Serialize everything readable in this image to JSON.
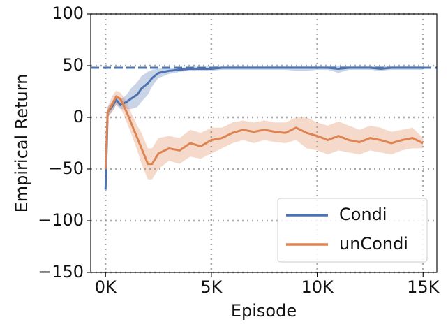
{
  "chart_data": {
    "type": "line",
    "xlabel": "Episode",
    "ylabel": "Empirical Return",
    "x": [
      0,
      100,
      300,
      500,
      700,
      1000,
      1200,
      1500,
      1700,
      2000,
      2200,
      2500,
      3000,
      3500,
      4000,
      4500,
      5000,
      5500,
      6000,
      6500,
      7000,
      7500,
      8000,
      8500,
      9000,
      9500,
      10000,
      10500,
      11000,
      11500,
      12000,
      12500,
      13000,
      13500,
      14000,
      14500,
      15000
    ],
    "series": [
      {
        "name": "Condi",
        "color": "#4c72b0",
        "values": [
          -70,
          5,
          10,
          17,
          12,
          15,
          18,
          22,
          28,
          33,
          38,
          43,
          45,
          46,
          47,
          47,
          47,
          48,
          48,
          48,
          48,
          48,
          48,
          48,
          48,
          48,
          48,
          48,
          47,
          48,
          48,
          48,
          47,
          48,
          48,
          48,
          48
        ],
        "lower": [
          -75,
          0,
          5,
          12,
          8,
          8,
          8,
          10,
          15,
          22,
          30,
          38,
          42,
          44,
          45,
          45,
          45,
          46,
          46,
          46,
          46,
          46,
          46,
          46,
          45,
          45,
          46,
          46,
          43,
          46,
          46,
          46,
          45,
          46,
          46,
          46,
          46
        ],
        "upper": [
          -65,
          10,
          15,
          22,
          17,
          22,
          28,
          34,
          40,
          44,
          46,
          47,
          48,
          48,
          49,
          49,
          49,
          50,
          50,
          50,
          50,
          50,
          50,
          50,
          50,
          50,
          50,
          50,
          50,
          50,
          50,
          50,
          49,
          50,
          50,
          50,
          50
        ]
      },
      {
        "name": "unCondi",
        "color": "#dd8452",
        "values": [
          -50,
          5,
          12,
          20,
          18,
          5,
          -5,
          -20,
          -30,
          -45,
          -45,
          -35,
          -30,
          -32,
          -25,
          -28,
          -22,
          -20,
          -15,
          -12,
          -14,
          -12,
          -14,
          -15,
          -10,
          -15,
          -18,
          -22,
          -18,
          -22,
          -24,
          -20,
          -22,
          -25,
          -22,
          -20,
          -25
        ],
        "lower": [
          -55,
          0,
          5,
          12,
          10,
          -5,
          -15,
          -32,
          -45,
          -60,
          -60,
          -50,
          -42,
          -45,
          -38,
          -40,
          -35,
          -30,
          -25,
          -22,
          -25,
          -22,
          -24,
          -25,
          -22,
          -30,
          -32,
          -36,
          -32,
          -34,
          -36,
          -32,
          -34,
          -36,
          -32,
          -30,
          -30
        ],
        "upper": [
          -45,
          10,
          20,
          26,
          24,
          15,
          5,
          -8,
          -15,
          -30,
          -30,
          -20,
          -18,
          -20,
          -12,
          -15,
          -10,
          -10,
          -5,
          -3,
          -5,
          -3,
          -5,
          -5,
          0,
          0,
          -5,
          -8,
          -4,
          -8,
          -12,
          -8,
          -10,
          -14,
          -12,
          -10,
          -20
        ]
      }
    ],
    "reference_line": 48,
    "xlim": [
      -700,
      15650
    ],
    "ylim": [
      -150,
      100
    ],
    "xticks": [
      {
        "value": 0,
        "label": "0K"
      },
      {
        "value": 5000,
        "label": "5K"
      },
      {
        "value": 10000,
        "label": "10K"
      },
      {
        "value": 15000,
        "label": "15K"
      }
    ],
    "yticks": [
      {
        "value": -150,
        "label": "−150"
      },
      {
        "value": -100,
        "label": "−100"
      },
      {
        "value": -50,
        "label": "−50"
      },
      0,
      50,
      100
    ],
    "grid": true,
    "legend": "lower right"
  }
}
